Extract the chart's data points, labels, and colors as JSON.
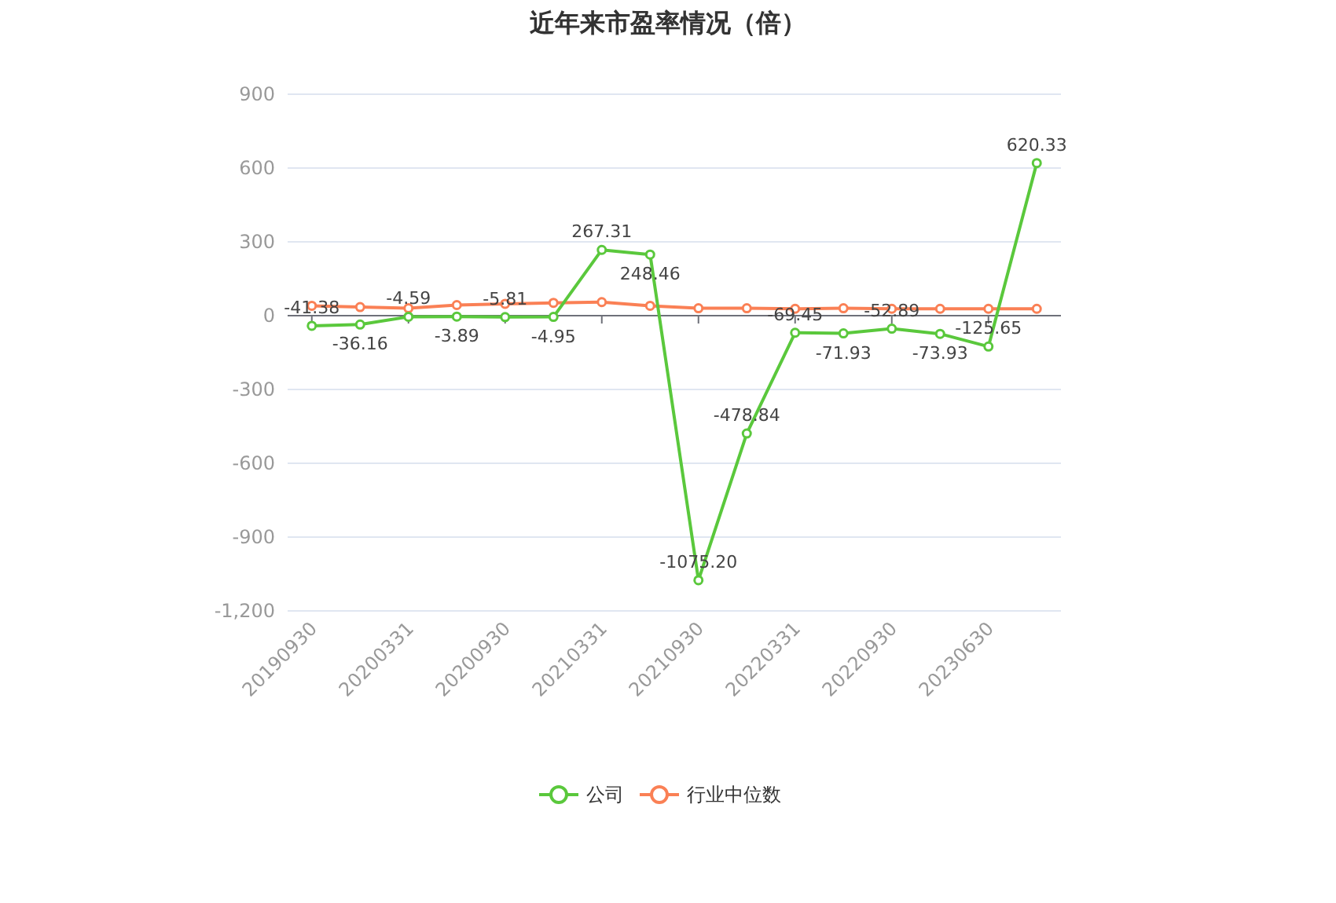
{
  "chart_data": {
    "type": "line",
    "title": "近年来市盈率情况（倍）",
    "categories": [
      "20190930",
      null,
      "20200331",
      null,
      "20200930",
      null,
      "20210331",
      null,
      "20210930",
      null,
      "20220331",
      null,
      "20220930",
      null,
      "20230630",
      null
    ],
    "series": [
      {
        "name": "公司",
        "color": "#5ac83c",
        "values": [
          -41.38,
          -36.16,
          -4.59,
          -3.89,
          -5.81,
          -4.95,
          267.31,
          248.46,
          -1075.2,
          -478.84,
          -69.45,
          -71.93,
          -52.89,
          -73.93,
          -125.65,
          620.33
        ],
        "value_labels": [
          "-41.38",
          "-36.16",
          "-4.59",
          "-3.89",
          "-5.81",
          "-4.95",
          "267.31",
          "248.46",
          "-1075.20",
          "-478.84",
          "-69.45",
          "-71.93",
          "-52.89",
          "-73.93",
          "-125.65",
          "620.33"
        ]
      },
      {
        "name": "行业中位数",
        "color": "#fa8055",
        "values": [
          40,
          35,
          30,
          43,
          48,
          52,
          55,
          40,
          30,
          30,
          28,
          30,
          28,
          28,
          28,
          28
        ]
      }
    ],
    "ylim": [
      -1200,
      900
    ],
    "yticks": [
      {
        "value": -1200,
        "label": "-1,200"
      },
      -900,
      -600,
      -300,
      0,
      300,
      600,
      900
    ],
    "grid": "y",
    "legend": "bottom",
    "marker": "circle"
  }
}
